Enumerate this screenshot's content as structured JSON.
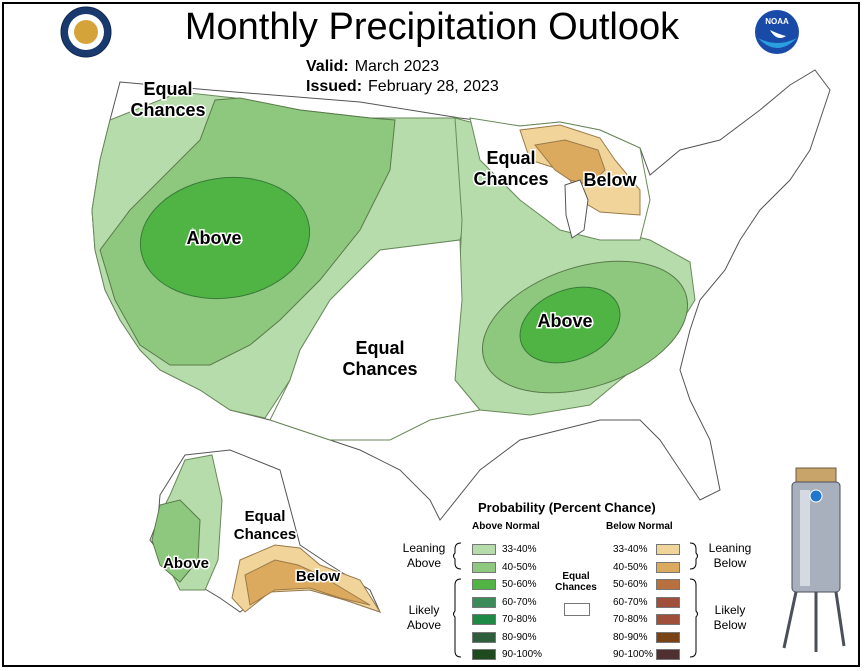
{
  "title": "Monthly Precipitation Outlook",
  "valid_label": "Valid:",
  "valid_value": "March 2023",
  "issued_label": "Issued:",
  "issued_value": "February 28, 2023",
  "map_labels": {
    "equal_chances": "Equal Chances",
    "above": "Above",
    "below": "Below"
  },
  "colors": {
    "above_33_40": "#b5dcaa",
    "above_40_50": "#8ec87e",
    "above_50_60": "#4fb443",
    "below_33_40": "#f0d49a",
    "below_40_50": "#dcaa5e"
  },
  "legend": {
    "title": "Probability (Percent Chance)",
    "above_header": "Above Normal",
    "below_header": "Below Normal",
    "equal_chances": "Equal Chances",
    "leaning_above": "Leaning Above",
    "likely_above": "Likely Above",
    "leaning_below": "Leaning Below",
    "likely_below": "Likely Below",
    "above_rows": [
      {
        "label": "33-40%",
        "color": "#b5dcaa"
      },
      {
        "label": "40-50%",
        "color": "#8ec87e"
      },
      {
        "label": "50-60%",
        "color": "#4fb443"
      },
      {
        "label": "60-70%",
        "color": "#3a8a5a"
      },
      {
        "label": "70-80%",
        "color": "#1f8a44"
      },
      {
        "label": "80-90%",
        "color": "#2e5e3c"
      },
      {
        "label": "90-100%",
        "color": "#1f4a1f"
      }
    ],
    "below_rows": [
      {
        "label": "33-40%",
        "color": "#f0d49a"
      },
      {
        "label": "40-50%",
        "color": "#dcaa5e"
      },
      {
        "label": "50-60%",
        "color": "#b8713e"
      },
      {
        "label": "60-70%",
        "color": "#a0503a"
      },
      {
        "label": "70-80%",
        "color": "#a0503a"
      },
      {
        "label": "80-90%",
        "color": "#7a4316"
      },
      {
        "label": "90-100%",
        "color": "#4f2f2f"
      }
    ]
  }
}
